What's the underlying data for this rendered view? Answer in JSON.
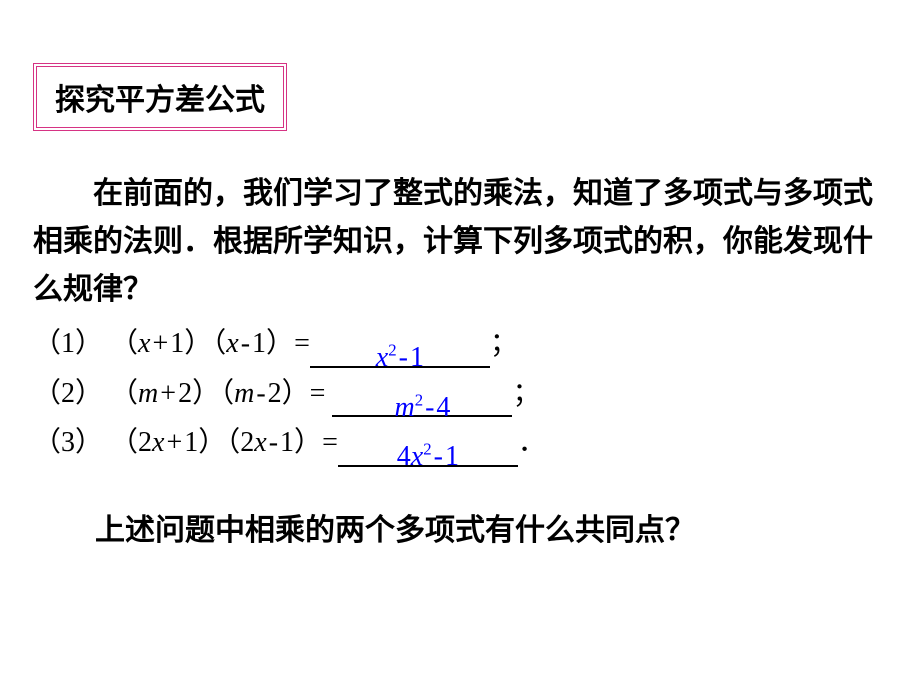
{
  "title": "探究平方差公式",
  "intro_part1": "在前面的，我们学习了整式的乘法，知道了多项式与多项式相乘的法则．根据所学知识，计算下列多项式的积，你能发现什么规律？",
  "problems": [
    {
      "label": "（1）",
      "lhs_a_var": "x",
      "lhs_a_op": "+",
      "lhs_a_num": "1",
      "lhs_b_var": "x",
      "lhs_b_op": "-",
      "lhs_b_num": "1",
      "post": "=",
      "ans_var": "x",
      "ans_exp": "2",
      "ans_op": "-",
      "ans_num": "1",
      "ans_coef": "",
      "tail": "；"
    },
    {
      "label": "（2）",
      "lhs_a_var": "m",
      "lhs_a_op": "+",
      "lhs_a_num": "2",
      "lhs_b_var": "m",
      "lhs_b_op": "-",
      "lhs_b_num": "2",
      "post": "= ",
      "ans_var": "m",
      "ans_exp": "2",
      "ans_op": "-",
      "ans_num": "4",
      "ans_coef": "",
      "tail": "；"
    },
    {
      "label": "（3）",
      "lhs_a_coef": "2",
      "lhs_a_var": "x",
      "lhs_a_op": "+",
      "lhs_a_num": "1",
      "lhs_b_coef": "2",
      "lhs_b_var": "x",
      "lhs_b_op": "-",
      "lhs_b_num": "1",
      "post": "=",
      "ans_coef": "4",
      "ans_var": "x",
      "ans_exp": "2",
      "ans_op": "-",
      "ans_num": "1",
      "tail": "．"
    }
  ],
  "question": "上述问题中相乘的两个多项式有什么共同点？",
  "colors": {
    "border": "#d63384",
    "answer": "#0000ff",
    "text": "#000000",
    "bg": "#ffffff"
  },
  "fonts": {
    "title_size": 30,
    "body_size": 30,
    "math_size": 28
  }
}
